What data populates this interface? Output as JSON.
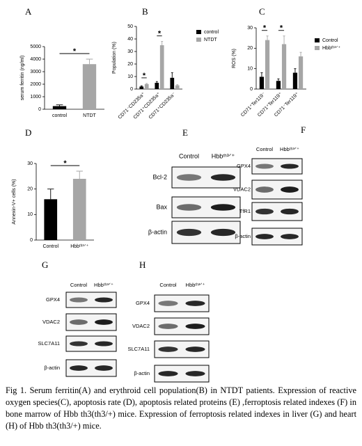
{
  "chart_data": [
    {
      "type": "bar",
      "panel": "A",
      "ylabel": "serum ferritin (ng/ml)",
      "categories": [
        "control",
        "NTDT"
      ],
      "values": [
        250,
        3600
      ],
      "errors": [
        100,
        400
      ],
      "colors": [
        "#000000",
        "#a6a6a6"
      ],
      "ylim": [
        0,
        5000
      ],
      "yticks": [
        0,
        1000,
        2000,
        3000,
        4000,
        5000
      ],
      "annotations": [
        "*"
      ]
    },
    {
      "type": "bar",
      "panel": "B",
      "ylabel": "Population (%)",
      "categories": [
        "CD71⁻CD235a⁺",
        "CD71⁺CD235a⁺",
        "CD71⁺CD235a⁻"
      ],
      "series": [
        {
          "name": "control",
          "color": "#000000",
          "values": [
            2,
            5,
            9
          ],
          "errors": [
            0.5,
            1,
            4
          ]
        },
        {
          "name": "NTDT",
          "color": "#a6a6a6",
          "values": [
            4,
            35,
            3
          ],
          "errors": [
            0.5,
            3,
            0.5
          ]
        }
      ],
      "ylim": [
        0,
        50
      ],
      "yticks": [
        0,
        10,
        20,
        30,
        40,
        50
      ],
      "annotations": [
        "*",
        "*"
      ]
    },
    {
      "type": "bar",
      "panel": "C",
      "ylabel": "ROS (%)",
      "categories": [
        "CD71⁺Ter119⁻",
        "CD71⁺Ter119⁺",
        "CD71⁻Ter119⁺"
      ],
      "series": [
        {
          "name": "Control",
          "color": "#000000",
          "values": [
            6,
            4,
            8
          ],
          "errors": [
            2,
            1,
            2
          ]
        },
        {
          "name": "Hbbᵗʰ³ᐟ⁺",
          "color": "#a6a6a6",
          "values": [
            24,
            22,
            16
          ],
          "errors": [
            2,
            4,
            2
          ]
        }
      ],
      "ylim": [
        0,
        30
      ],
      "yticks": [
        0,
        10,
        20,
        30
      ],
      "annotations": [
        "*",
        "*"
      ]
    },
    {
      "type": "bar",
      "panel": "D",
      "ylabel": "Annexin-V+ cells (%)",
      "categories": [
        "Control",
        "Hbbᵗʰ³ᐟ⁺"
      ],
      "values": [
        16,
        24
      ],
      "errors": [
        4,
        3
      ],
      "colors": [
        "#000000",
        "#a6a6a6"
      ],
      "ylim": [
        0,
        30
      ],
      "yticks": [
        0,
        10,
        20,
        30
      ],
      "annotations": [
        "*"
      ]
    }
  ],
  "blots": [
    {
      "panel": "E",
      "columns": [
        "Control",
        "Hbbᵗʰ³ᐟ⁺"
      ],
      "rows": [
        "Bcl-2",
        "Bax",
        "β-actin"
      ]
    },
    {
      "panel": "F",
      "columns": [
        "Control",
        "Hbbᵗʰ³ᐟ⁺"
      ],
      "rows": [
        "GPX4",
        "VDAC2",
        "TfR1",
        "β-actin"
      ]
    },
    {
      "panel": "G",
      "columns": [
        "Control",
        "Hbbᵗʰ³ᐟ⁺"
      ],
      "rows": [
        "GPX4",
        "VDAC2",
        "SLC7A11",
        "β-actin"
      ]
    },
    {
      "panel": "H",
      "columns": [
        "Control",
        "Hbbᵗʰ³ᐟ⁺"
      ],
      "rows": [
        "GPX4",
        "VDAC2",
        "SLC7A11",
        "β-actin"
      ]
    }
  ],
  "caption": "Fig 1. Serum ferritin(A) and erythroid cell population(B) in NTDT patients. Expression of reactive oxygen species(C), apoptosis rate (D), apoptosis related proteins (E) ,ferroptosis related indexes (F) in bone marrow of Hbb th3(th3/+) mice. Expression of ferroptosis related indexes in liver (G) and heart (H) of Hbb th3(th3/+) mice."
}
